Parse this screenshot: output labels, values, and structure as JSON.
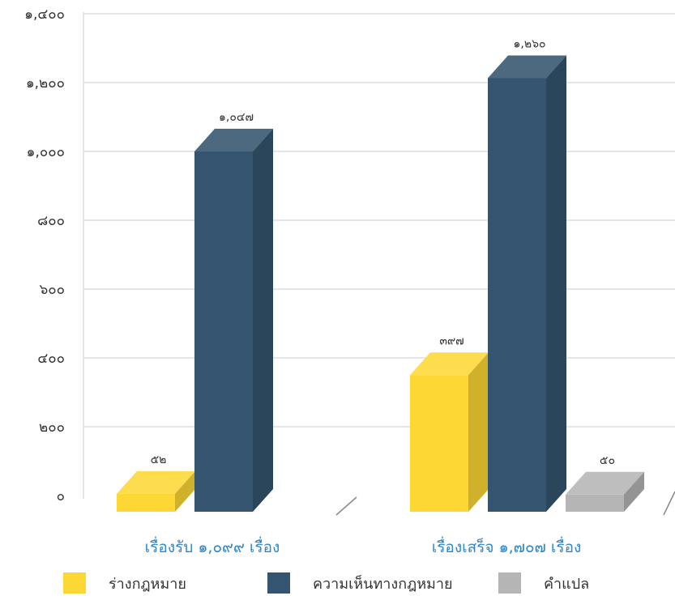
{
  "chart_data": {
    "type": "bar",
    "categories": [
      "เรื่องรับ ๑,๐๙๙ เรื่อง",
      "เรื่องเสร็จ ๑,๗๐๗ เรื่อง"
    ],
    "series": [
      {
        "name": "ร่างกฎหมาย",
        "values": [
          52,
          397
        ],
        "labels": [
          "๕๒",
          "๓๙๗"
        ],
        "color": "#fdd835"
      },
      {
        "name": "ความเห็นทางกฎหมาย",
        "values": [
          1047,
          1260
        ],
        "labels": [
          "๑,๐๔๗",
          "๑,๒๖๐"
        ],
        "color": "#34546f"
      },
      {
        "name": "คำแปล",
        "values": [
          null,
          50
        ],
        "labels": [
          null,
          "๕๐"
        ],
        "color": "#b5b5b5"
      }
    ],
    "yticks": [
      "๐",
      "๒๐๐",
      "๔๐๐",
      "๖๐๐",
      "๘๐๐",
      "๑,๐๐๐",
      "๑,๒๐๐",
      "๑,๔๐๐"
    ],
    "ylim": [
      0,
      1400
    ],
    "grid": true,
    "legend_position": "bottom",
    "three_d": true,
    "colors": {
      "category_label": "#2e86c9",
      "grid": "#dddddd",
      "text": "#333333"
    }
  }
}
